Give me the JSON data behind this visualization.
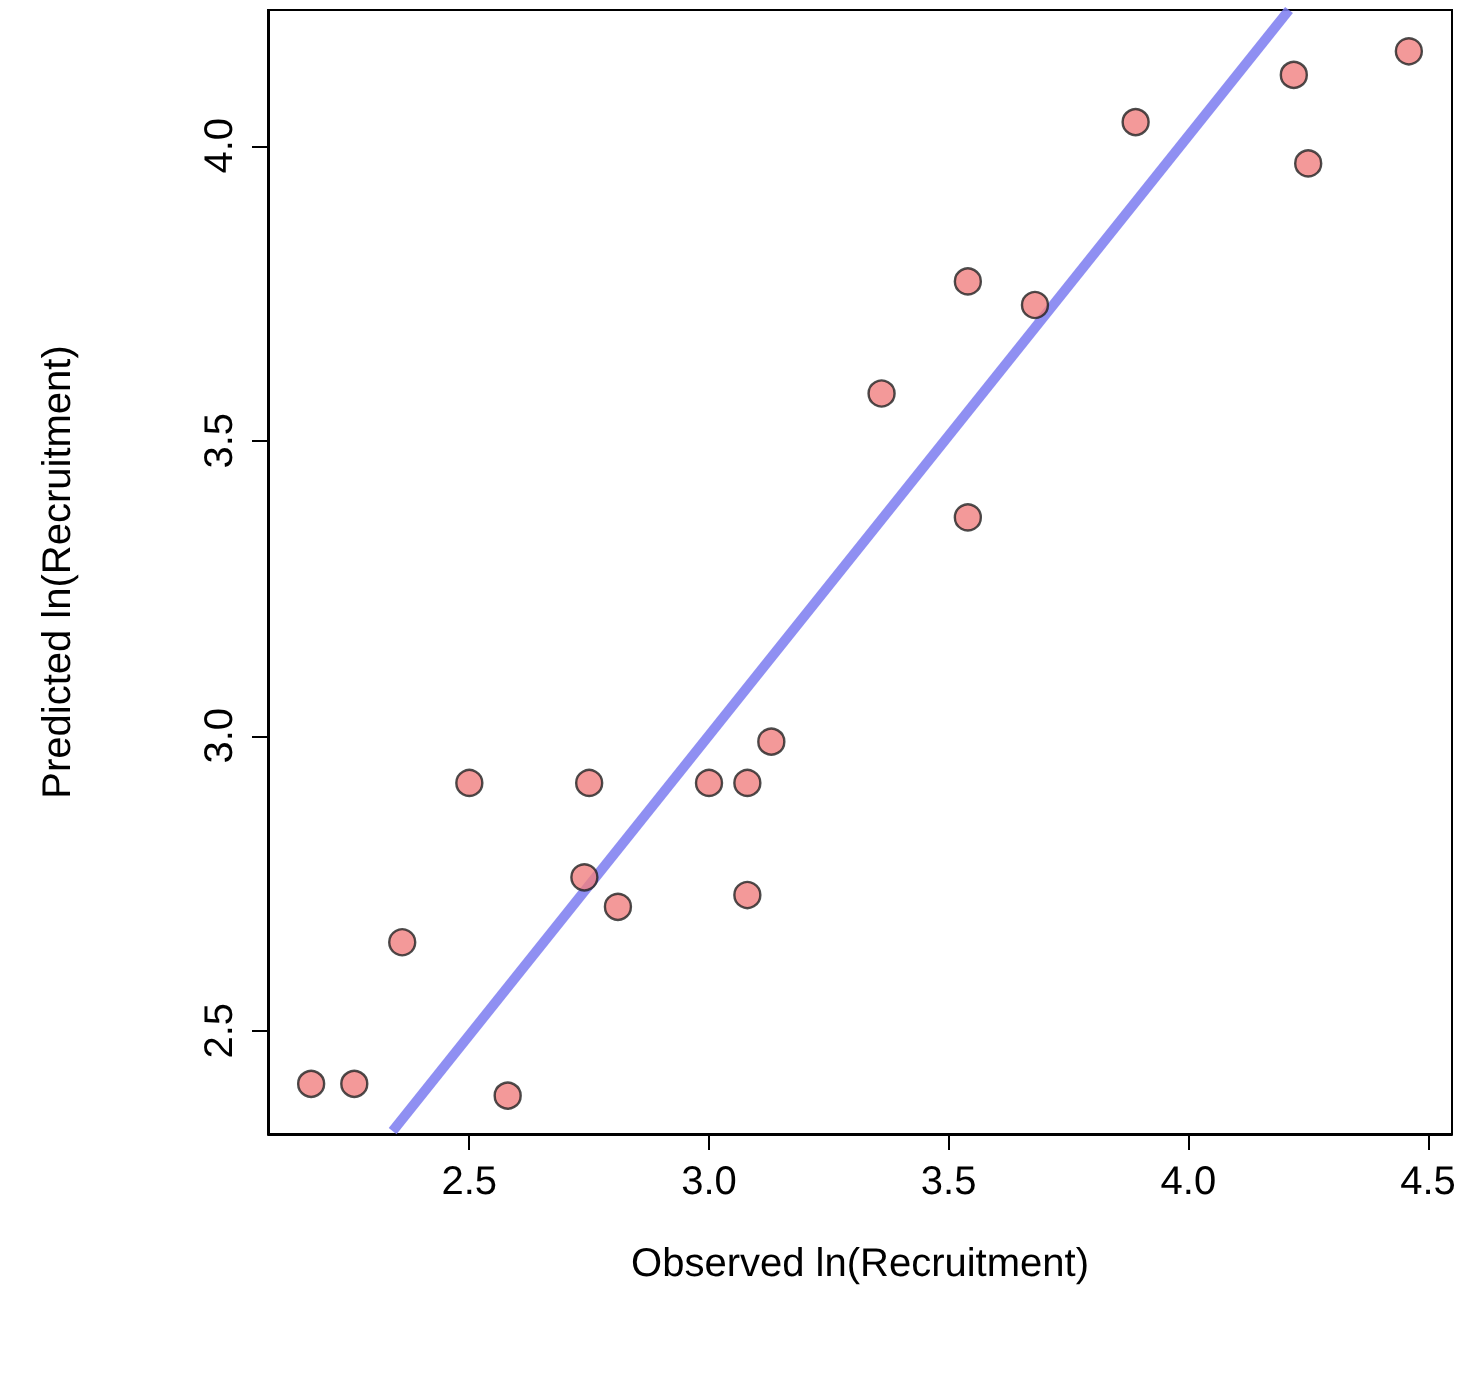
{
  "chart_data": {
    "type": "scatter",
    "xlabel": "Observed ln(Recruitment)",
    "ylabel": "Predicted ln(Recruitment)",
    "xlim": [
      2.08,
      4.55
    ],
    "ylim": [
      2.325,
      4.23
    ],
    "xticks": [
      2.5,
      {
        "value": 3,
        "label": "3.0"
      },
      3.5,
      {
        "value": 4,
        "label": "4.0"
      },
      4.5
    ],
    "yticks": [
      2.5,
      {
        "value": 3,
        "label": "3.0"
      },
      3.5,
      {
        "value": 4,
        "label": "4.0"
      }
    ],
    "grid": false,
    "series": [
      {
        "marker": "circle",
        "color": "#f08080",
        "x": [
          2.17,
          2.26,
          2.36,
          2.5,
          2.58,
          2.75,
          2.74,
          2.81,
          3.0,
          3.08,
          3.08,
          3.13,
          3.36,
          3.54,
          3.54,
          3.68,
          3.89,
          4.22,
          4.25,
          4.46
        ],
        "values": [
          2.41,
          2.41,
          2.65,
          2.92,
          2.39,
          2.92,
          2.76,
          2.71,
          2.92,
          2.92,
          2.73,
          2.99,
          3.58,
          3.77,
          3.37,
          3.73,
          4.04,
          4.12,
          3.97,
          4.16
        ]
      },
      {
        "type": "line",
        "color": "#7b7bf0",
        "x": [
          2.34,
          4.21
        ],
        "values": [
          2.33,
          4.23
        ]
      }
    ]
  }
}
